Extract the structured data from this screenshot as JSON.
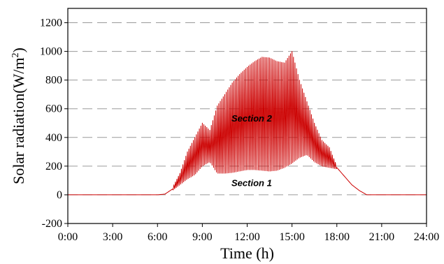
{
  "chart_data": {
    "type": "line",
    "title": "",
    "xlabel": "Time (h)",
    "ylabel": "Solar radiation(W/m",
    "ylabel_sup": "2",
    "ylabel_close": ")",
    "xlim": [
      0,
      24
    ],
    "ylim": [
      -200,
      1300
    ],
    "x_ticks": [
      0,
      3,
      6,
      9,
      12,
      15,
      18,
      21,
      24
    ],
    "x_tick_labels": [
      "0:00",
      "3:00",
      "6:00",
      "9:00",
      "12:00",
      "15:00",
      "18:00",
      "21:00",
      "24:00"
    ],
    "y_ticks": [
      -200,
      0,
      200,
      400,
      600,
      800,
      1000,
      1200
    ],
    "y_tick_labels": [
      "-200",
      "0",
      "200",
      "400",
      "600",
      "800",
      "1000",
      "1200"
    ],
    "grid": "horizontal-dashed",
    "line_color": "#cc0000",
    "annotations": [
      {
        "text": "Section 2",
        "x": 12.3,
        "y": 510
      },
      {
        "text": "Section 1",
        "x": 12.3,
        "y": 60
      }
    ],
    "series": [
      {
        "x": [
          0,
          6.0,
          6.5,
          7.0,
          7.5,
          8.0,
          8.5,
          9.0,
          9.5,
          10.0,
          10.5,
          11.0,
          11.5,
          12.0,
          12.5,
          13.0,
          13.5,
          14.0,
          14.5,
          15.0,
          15.5,
          16.0,
          16.5,
          17.0,
          17.5,
          18.0,
          18.5,
          19.0,
          19.5,
          20.0,
          24
        ],
        "upper": [
          0,
          0,
          5,
          50,
          150,
          300,
          400,
          500,
          450,
          620,
          700,
          780,
          840,
          890,
          930,
          960,
          955,
          930,
          920,
          1000,
          800,
          650,
          500,
          380,
          330,
          200,
          130,
          70,
          30,
          0,
          0
        ],
        "lower": [
          0,
          0,
          5,
          30,
          70,
          110,
          140,
          200,
          230,
          150,
          150,
          155,
          165,
          175,
          175,
          170,
          165,
          170,
          190,
          220,
          260,
          280,
          230,
          200,
          190,
          180,
          130,
          70,
          30,
          0,
          0
        ]
      }
    ]
  }
}
